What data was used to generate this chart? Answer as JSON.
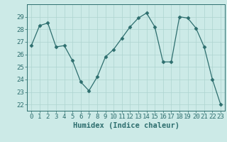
{
  "x": [
    0,
    1,
    2,
    3,
    4,
    5,
    6,
    7,
    8,
    9,
    10,
    11,
    12,
    13,
    14,
    15,
    16,
    17,
    18,
    19,
    20,
    21,
    22,
    23
  ],
  "y": [
    26.7,
    28.3,
    28.5,
    26.6,
    26.7,
    25.5,
    23.8,
    23.1,
    24.2,
    25.8,
    26.4,
    27.3,
    28.2,
    28.9,
    29.3,
    28.2,
    25.4,
    25.4,
    29.0,
    28.9,
    28.1,
    26.6,
    24.0,
    22.0
  ],
  "xlim": [
    -0.5,
    23.5
  ],
  "ylim": [
    21.5,
    30.0
  ],
  "yticks": [
    22,
    23,
    24,
    25,
    26,
    27,
    28,
    29
  ],
  "xticks": [
    0,
    1,
    2,
    3,
    4,
    5,
    6,
    7,
    8,
    9,
    10,
    11,
    12,
    13,
    14,
    15,
    16,
    17,
    18,
    19,
    20,
    21,
    22,
    23
  ],
  "xlabel": "Humidex (Indice chaleur)",
  "line_color": "#2d6e6e",
  "marker": "D",
  "marker_size": 2.5,
  "bg_color": "#cceae7",
  "grid_color": "#add4d0",
  "tick_color": "#2d6e6e",
  "xlabel_fontsize": 7.5,
  "tick_fontsize": 6.5
}
